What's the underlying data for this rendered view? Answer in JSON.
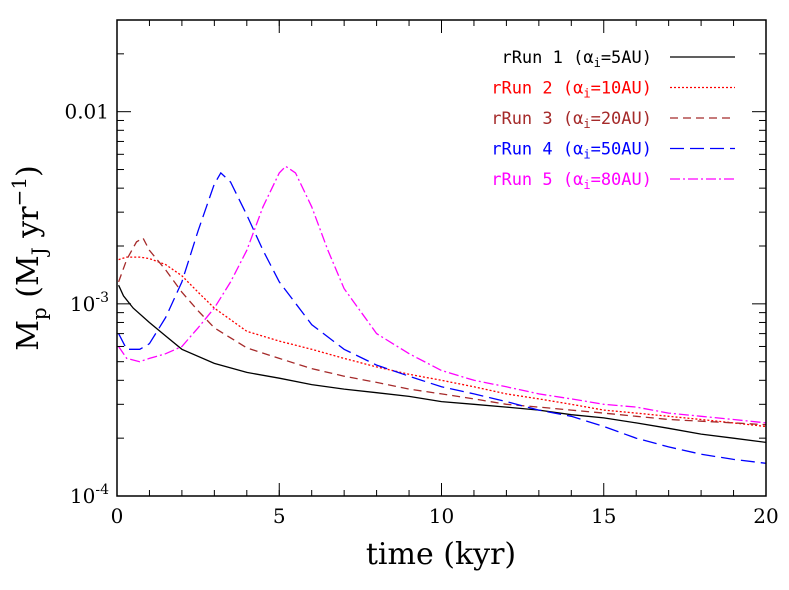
{
  "chart_data": {
    "type": "line",
    "xlabel": "time (kyr)",
    "ylabel": "M_p (M_J yr^-1)",
    "xlim": [
      0,
      20
    ],
    "ylim": [
      0.0001,
      0.03
    ],
    "yscale": "log",
    "grid": false,
    "legend_position": "top-right",
    "x_ticks": [
      {
        "value": 0,
        "label": "0"
      },
      {
        "value": 5,
        "label": "5"
      },
      {
        "value": 10,
        "label": "10"
      },
      {
        "value": 15,
        "label": "15"
      },
      {
        "value": 20,
        "label": "20"
      }
    ],
    "y_ticks": [
      {
        "value": 0.0001,
        "base": "10",
        "exp": "-4"
      },
      {
        "value": 0.001,
        "base": "10",
        "exp": "-3"
      },
      {
        "value": 0.01,
        "label": "0.01"
      }
    ],
    "series": [
      {
        "name": "rRun 1 (αi=5AU)",
        "color": "#000000",
        "dash": "",
        "x": [
          0.05,
          0.2,
          0.5,
          1,
          1.5,
          2,
          3,
          4,
          5,
          6,
          7,
          8,
          9,
          10,
          11,
          12,
          13,
          14,
          15,
          16,
          17,
          18,
          19,
          20
        ],
        "y": [
          0.00125,
          0.0011,
          0.00095,
          0.0008,
          0.00068,
          0.00058,
          0.00049,
          0.00044,
          0.00041,
          0.00038,
          0.00036,
          0.000345,
          0.00033,
          0.00031,
          0.0003,
          0.00029,
          0.00028,
          0.000265,
          0.000255,
          0.00024,
          0.000225,
          0.00021,
          0.0002,
          0.00019
        ]
      },
      {
        "name": "rRun 2 (αi=10AU)",
        "color": "#ff0000",
        "dash": "2,2",
        "x": [
          0.05,
          0.3,
          0.7,
          1,
          1.5,
          2,
          2.5,
          3,
          4,
          5,
          6,
          7,
          8,
          9,
          10,
          11,
          12,
          13,
          14,
          15,
          16,
          17,
          18,
          19,
          20
        ],
        "y": [
          0.0017,
          0.00175,
          0.00175,
          0.00172,
          0.0016,
          0.0014,
          0.00115,
          0.00095,
          0.00072,
          0.00064,
          0.00058,
          0.00052,
          0.00047,
          0.00043,
          0.0004,
          0.00037,
          0.00034,
          0.00032,
          0.0003,
          0.00028,
          0.00027,
          0.00026,
          0.00025,
          0.00024,
          0.00023
        ]
      },
      {
        "name": "rRun 3 (αi=20AU)",
        "color": "#a52a2a",
        "dash": "8,5",
        "x": [
          0.05,
          0.3,
          0.6,
          0.8,
          1,
          1.5,
          2,
          2.5,
          3,
          4,
          5,
          6,
          7,
          8,
          9,
          10,
          11,
          12,
          13,
          14,
          15,
          16,
          17,
          18,
          19,
          20
        ],
        "y": [
          0.0013,
          0.0017,
          0.0021,
          0.0022,
          0.0019,
          0.0015,
          0.00115,
          0.00092,
          0.00075,
          0.00059,
          0.00052,
          0.00046,
          0.00042,
          0.00039,
          0.00036,
          0.00034,
          0.00032,
          0.0003,
          0.00029,
          0.00028,
          0.00027,
          0.00026,
          0.00025,
          0.000245,
          0.00024,
          0.000235
        ]
      },
      {
        "name": "rRun 4 (αi=50AU)",
        "color": "#0000ff",
        "dash": "14,6",
        "x": [
          0.05,
          0.3,
          0.7,
          1,
          1.5,
          2,
          2.5,
          3,
          3.2,
          3.5,
          4,
          4.5,
          5,
          6,
          7,
          8,
          9,
          10,
          11,
          12,
          13,
          14,
          15,
          16,
          17,
          18,
          19,
          20
        ],
        "y": [
          0.0007,
          0.00058,
          0.00058,
          0.00062,
          0.00085,
          0.0013,
          0.0024,
          0.0042,
          0.0048,
          0.0043,
          0.0029,
          0.0019,
          0.0013,
          0.00078,
          0.00058,
          0.00048,
          0.00042,
          0.00037,
          0.00034,
          0.00031,
          0.00028,
          0.00026,
          0.00023,
          0.0002,
          0.00018,
          0.000165,
          0.000155,
          0.000148
        ]
      },
      {
        "name": "rRun 5 (αi=80AU)",
        "color": "#ff00ff",
        "dash": "10,3,2,3",
        "x": [
          0.05,
          0.3,
          0.7,
          1,
          1.5,
          2,
          2.5,
          3,
          3.5,
          4,
          4.5,
          5,
          5.2,
          5.5,
          6,
          6.5,
          7,
          8,
          9,
          10,
          11,
          12,
          13,
          14,
          15,
          16,
          17,
          18,
          19,
          20
        ],
        "y": [
          0.0006,
          0.00052,
          0.0005,
          0.00052,
          0.00055,
          0.0006,
          0.00075,
          0.00095,
          0.0013,
          0.0019,
          0.0032,
          0.0048,
          0.0052,
          0.0048,
          0.0032,
          0.0019,
          0.0012,
          0.0007,
          0.00055,
          0.00045,
          0.0004,
          0.00037,
          0.00034,
          0.00032,
          0.0003,
          0.00029,
          0.00027,
          0.00026,
          0.00025,
          0.00024
        ]
      }
    ]
  }
}
